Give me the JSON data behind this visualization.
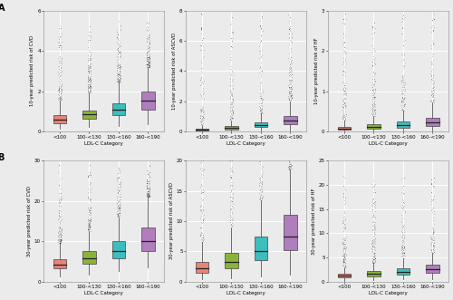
{
  "categories": [
    "<100",
    "100-<130",
    "130-<160",
    "160-<190"
  ],
  "colors": [
    "#E8837A",
    "#8BB33A",
    "#3DBDBD",
    "#B07DBD"
  ],
  "panel_labels": [
    "A",
    "B"
  ],
  "row_labels": [
    [
      "10-year predicted risk of CVD",
      "10-year predicted risk of ASCVD",
      "10-year predicted risk of HF"
    ],
    [
      "30-year predicted risk of CVD",
      "30-year predicted risk of ASCVD",
      "30-year predicted risk of HF"
    ]
  ],
  "xlabel": "LDL-C Category",
  "box_data": {
    "row0_col0": {
      "medians": [
        0.6,
        0.85,
        1.1,
        1.55
      ],
      "q1": [
        0.42,
        0.62,
        0.82,
        1.1
      ],
      "q3": [
        0.82,
        1.05,
        1.42,
        2.0
      ],
      "whislo": [
        0.15,
        0.22,
        0.28,
        0.35
      ],
      "whishi": [
        1.55,
        1.95,
        2.42,
        3.2
      ],
      "outlier_max": 5.5,
      "ylim": [
        0,
        6
      ],
      "yticks": [
        0,
        2,
        4,
        6
      ]
    },
    "row0_col1": {
      "medians": [
        0.12,
        0.22,
        0.42,
        0.72
      ],
      "q1": [
        0.07,
        0.14,
        0.28,
        0.48
      ],
      "q3": [
        0.18,
        0.34,
        0.62,
        1.05
      ],
      "whislo": [
        0.01,
        0.02,
        0.05,
        0.08
      ],
      "whishi": [
        0.42,
        0.72,
        1.2,
        2.0
      ],
      "outlier_max": 8.0,
      "ylim": [
        0,
        8
      ],
      "yticks": [
        0,
        2,
        4,
        6,
        8
      ]
    },
    "row0_col2": {
      "medians": [
        0.08,
        0.12,
        0.16,
        0.22
      ],
      "q1": [
        0.05,
        0.08,
        0.1,
        0.14
      ],
      "q3": [
        0.12,
        0.18,
        0.24,
        0.35
      ],
      "whislo": [
        0.01,
        0.02,
        0.02,
        0.03
      ],
      "whishi": [
        0.28,
        0.38,
        0.52,
        0.72
      ],
      "outlier_max": 3.0,
      "ylim": [
        0,
        3
      ],
      "yticks": [
        0,
        1,
        2,
        3
      ]
    },
    "row1_col0": {
      "medians": [
        4.2,
        5.8,
        7.5,
        10.0
      ],
      "q1": [
        3.2,
        4.5,
        5.8,
        7.5
      ],
      "q3": [
        5.5,
        7.5,
        10.0,
        13.5
      ],
      "whislo": [
        1.2,
        1.8,
        2.5,
        3.5
      ],
      "whishi": [
        9.5,
        12.5,
        16.0,
        21.0
      ],
      "outlier_max": 29.0,
      "ylim": [
        0,
        30
      ],
      "yticks": [
        0,
        10,
        20,
        30
      ]
    },
    "row1_col1": {
      "medians": [
        2.2,
        3.2,
        5.0,
        7.5
      ],
      "q1": [
        1.5,
        2.2,
        3.5,
        5.2
      ],
      "q3": [
        3.2,
        4.8,
        7.5,
        11.0
      ],
      "whislo": [
        0.4,
        0.6,
        0.9,
        1.2
      ],
      "whishi": [
        6.5,
        9.0,
        13.5,
        18.5
      ],
      "outlier_max": 30.0,
      "ylim": [
        0,
        20
      ],
      "yticks": [
        0,
        5,
        10,
        15,
        20
      ]
    },
    "row1_col2": {
      "medians": [
        1.2,
        1.6,
        2.0,
        2.5
      ],
      "q1": [
        0.8,
        1.1,
        1.4,
        1.8
      ],
      "q3": [
        1.6,
        2.2,
        2.8,
        3.5
      ],
      "whislo": [
        0.2,
        0.3,
        0.4,
        0.5
      ],
      "whishi": [
        3.0,
        3.8,
        4.8,
        6.0
      ],
      "outlier_max": 22.0,
      "ylim": [
        0,
        25
      ],
      "yticks": [
        0,
        5,
        10,
        15,
        20,
        25
      ]
    }
  }
}
